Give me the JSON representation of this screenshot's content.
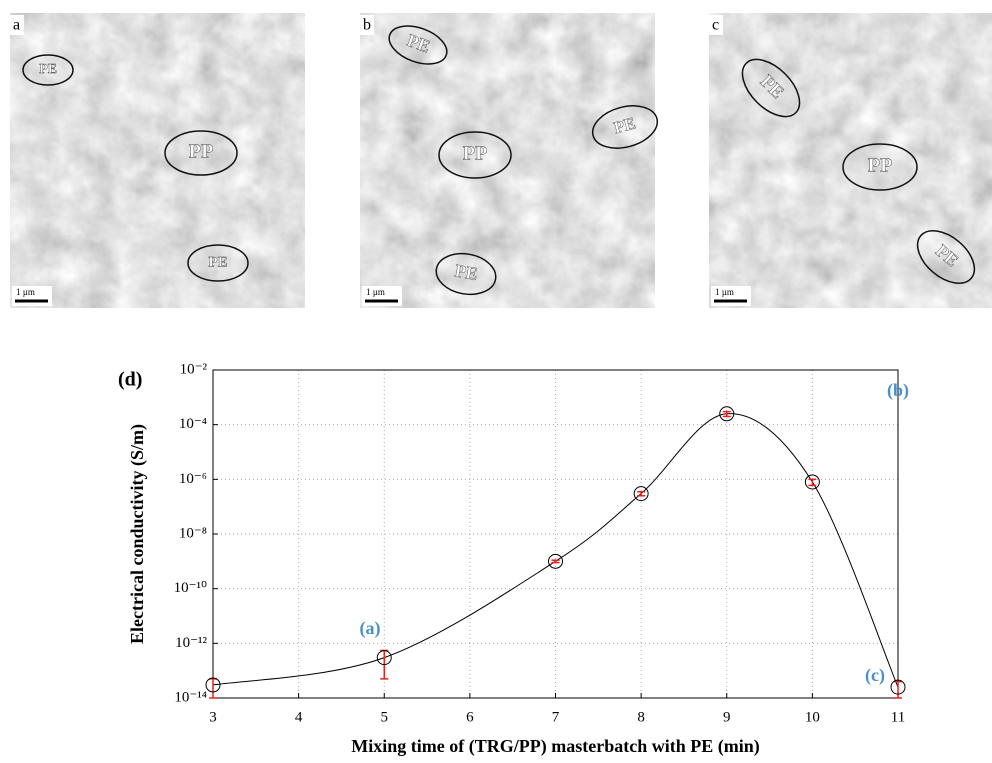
{
  "panels": [
    {
      "label": "a",
      "regions": [
        "PE",
        "PP",
        "PE"
      ],
      "scale": "1 µm"
    },
    {
      "label": "b",
      "regions": [
        "PE",
        "PP",
        "PE",
        "PE"
      ],
      "scale": "1 µm"
    },
    {
      "label": "c",
      "regions": [
        "PE",
        "PP",
        "PE"
      ],
      "scale": "1 µm"
    }
  ],
  "chart_data": {
    "type": "scatter",
    "panel_label": "(d)",
    "x_label": "Mixing time of (TRG/PP) masterbatch with PE (min)",
    "y_label": "Electrical conductivity (S/m)",
    "x": [
      3,
      5,
      7,
      8,
      9,
      10,
      11
    ],
    "series": [
      {
        "values": [
          3e-14,
          3e-13,
          1e-09,
          3e-07,
          0.00025,
          8e-07,
          2.5e-14
        ],
        "errors": [
          2e-14,
          2.5e-13,
          1e-10,
          5e-08,
          5e-05,
          2e-07,
          1.5e-14
        ],
        "color": "#000000",
        "error_color": "#e8201c"
      }
    ],
    "annotations": [
      "(a)",
      "(b)",
      "(c)"
    ],
    "annotation_color": "#4a8fc9",
    "xlim": [
      3,
      11
    ],
    "xticks": [
      3,
      4,
      5,
      6,
      7,
      8,
      9,
      10,
      11
    ],
    "ylim": [
      1e-14,
      0.01
    ],
    "log_y": true,
    "yticks": [
      {
        "value": 1e-14,
        "label": "10⁻¹⁴"
      },
      {
        "value": 1e-12,
        "label": "10⁻¹²"
      },
      {
        "value": 1e-10,
        "label": "10⁻¹⁰"
      },
      {
        "value": 1e-08,
        "label": "10⁻⁸"
      },
      {
        "value": 1e-06,
        "label": "10⁻⁶"
      },
      {
        "value": 0.0001,
        "label": "10⁻⁴"
      },
      {
        "value": 0.01,
        "label": "10⁻²"
      }
    ],
    "grid": true
  }
}
